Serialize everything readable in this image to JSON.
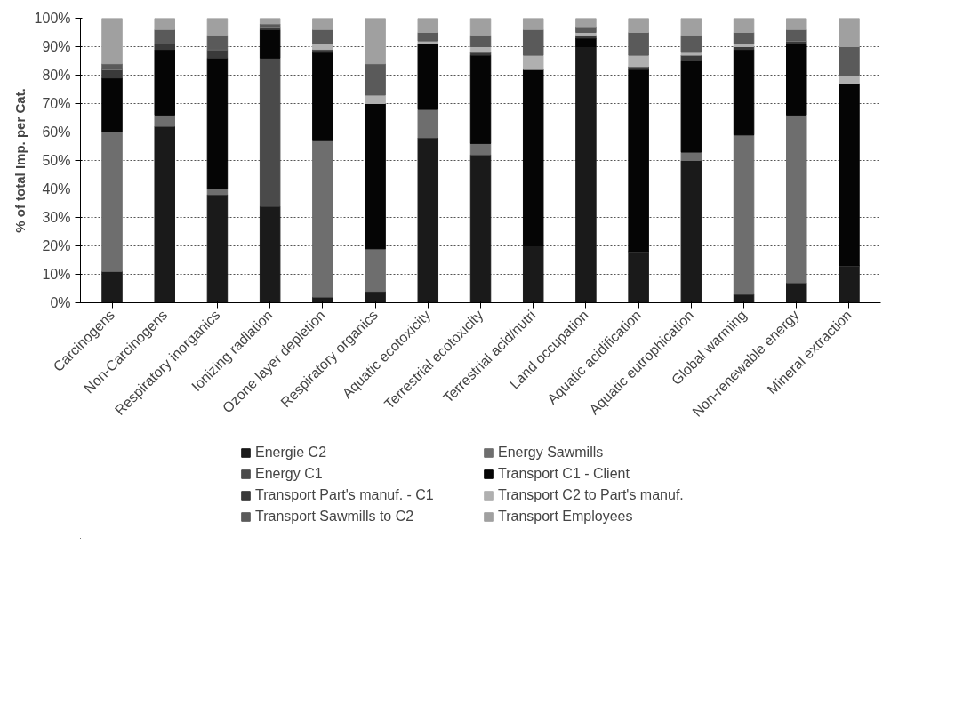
{
  "chart_data": {
    "type": "bar",
    "stacked": true,
    "ylabel": "% of total Imp. per Cat.",
    "categories": [
      "Carcinogens",
      "Non-Carcinogens",
      "Respiratory inorganics",
      "Ionizing radiation",
      "Ozone layer depletion",
      "Respiratory organics",
      "Aquatic ecotoxicity",
      "Terrestrial ecotoxicity",
      "Terrestrial acid/nutri",
      "Land occupation",
      "Aquatic acidification",
      "Aquatic eutrophication",
      "Global warming",
      "Non-renewable energy",
      "Mineral extraction"
    ],
    "series": [
      {
        "name": "Energie C2",
        "color": "#1a1a1a",
        "values": [
          11,
          62,
          38,
          34,
          2,
          4,
          58,
          52,
          20,
          90,
          18,
          50,
          3,
          7,
          13
        ]
      },
      {
        "name": "Energy Sawmills",
        "color": "#6e6e6e",
        "values": [
          49,
          4,
          2,
          0,
          55,
          15,
          10,
          4,
          0,
          0,
          0,
          3,
          56,
          59,
          0
        ]
      },
      {
        "name": "Energy C1",
        "color": "#4a4a4a",
        "values": [
          0,
          0,
          0,
          52,
          0,
          0,
          0,
          0,
          0,
          0,
          0,
          0,
          0,
          0,
          0
        ]
      },
      {
        "name": "Transport C1 - Client",
        "color": "#050505",
        "values": [
          19,
          23,
          46,
          10,
          31,
          51,
          23,
          31,
          62,
          3,
          64,
          32,
          30,
          25,
          64
        ]
      },
      {
        "name": "Transport Part's manuf. - C1",
        "color": "#3a3a3a",
        "values": [
          3,
          2,
          3,
          1,
          1,
          0,
          0,
          1,
          0,
          1,
          1,
          2,
          1,
          1,
          0
        ]
      },
      {
        "name": "Transport C2 to Part's manuf.",
        "color": "#b0b0b0",
        "values": [
          0,
          0,
          0,
          0,
          2,
          3,
          1,
          2,
          5,
          1,
          4,
          1,
          1,
          0,
          3
        ]
      },
      {
        "name": "Transport Sawmills to C2",
        "color": "#5a5a5a",
        "values": [
          2,
          5,
          5,
          1,
          5,
          11,
          3,
          4,
          9,
          2,
          8,
          6,
          4,
          4,
          10
        ]
      },
      {
        "name": "Transport Employees",
        "color": "#a0a0a0",
        "values": [
          16,
          4,
          6,
          2,
          4,
          16,
          5,
          6,
          4,
          3,
          5,
          6,
          5,
          4,
          10
        ]
      }
    ],
    "ylim": [
      0,
      100
    ],
    "yticks": [
      {
        "value": 0,
        "label": "0%"
      },
      {
        "value": 10,
        "label": "10%"
      },
      {
        "value": 20,
        "label": "20%"
      },
      {
        "value": 30,
        "label": "30%"
      },
      {
        "value": 40,
        "label": "40%"
      },
      {
        "value": 50,
        "label": "50%"
      },
      {
        "value": 60,
        "label": "60%"
      },
      {
        "value": 70,
        "label": "70%"
      },
      {
        "value": 80,
        "label": "80%"
      },
      {
        "value": 90,
        "label": "90%"
      },
      {
        "value": 100,
        "label": "100%"
      }
    ],
    "grid": "y",
    "legend": "bottom"
  }
}
